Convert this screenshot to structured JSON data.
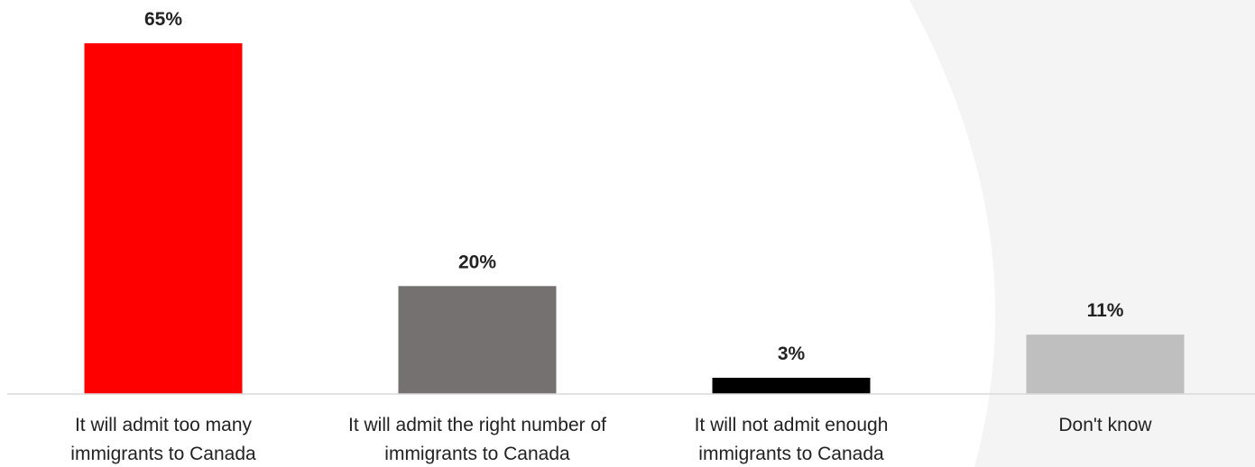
{
  "chart_data": {
    "type": "bar",
    "categories": [
      [
        "It will admit too many",
        "immigrants to Canada"
      ],
      [
        "It will admit the right number of",
        "immigrants to Canada"
      ],
      [
        "It will not admit enough",
        "immigrants to Canada"
      ],
      [
        "Don't know"
      ]
    ],
    "values": [
      65,
      20,
      3,
      11
    ],
    "value_labels": [
      "65%",
      "20%",
      "3%",
      "11%"
    ],
    "bar_colors": [
      "#ff0000",
      "#767171",
      "#000000",
      "#bfbfbf"
    ],
    "ylim": [
      0,
      65
    ],
    "grid": false,
    "legend": "none"
  }
}
